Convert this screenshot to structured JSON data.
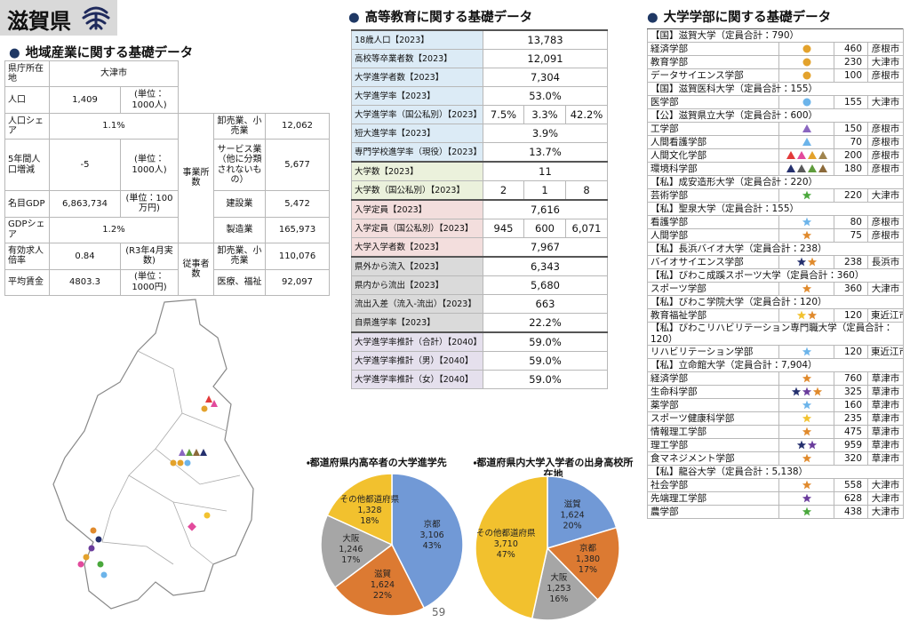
{
  "header": {
    "title": "滋賀県",
    "page_number": "59"
  },
  "industry": {
    "title": "地域産業に関する基礎データ",
    "rows": [
      {
        "label": "県庁所在地",
        "value": "大津市"
      },
      {
        "label": "人口",
        "value": "1,409",
        "unit": "(単位：1000人)"
      },
      {
        "label": "人口シェア",
        "value": "1.1%"
      },
      {
        "label": "5年間人口増減",
        "value": "-5",
        "unit": "(単位：1000人)"
      },
      {
        "label": "名目GDP",
        "value": "6,863,734",
        "unit": "(単位：100万円)"
      },
      {
        "label": "GDPシェア",
        "value": "1.2%"
      },
      {
        "label": "有効求人倍率",
        "value": "0.84",
        "unit": "(R3年4月実数)"
      },
      {
        "label": "平均賃金",
        "value": "4803.3",
        "unit": "(単位：1000円)"
      }
    ],
    "establishments": {
      "label": "事業所数",
      "items": [
        {
          "label": "卸売業、小売業",
          "value": "12,062"
        },
        {
          "label": "サービス業（他に分類されないもの）",
          "value": "5,677"
        },
        {
          "label": "建設業",
          "value": "5,472"
        },
        {
          "label": "製造業",
          "value": "165,973"
        }
      ]
    },
    "employees": {
      "label": "従事者数",
      "items": [
        {
          "label": "卸売業、小売業",
          "value": "110,076"
        },
        {
          "label": "医療、福祉",
          "value": "92,097"
        }
      ]
    }
  },
  "higher_education": {
    "title": "高等教育に関する基礎データ",
    "sections": [
      {
        "color": "#dcebf6",
        "rows": [
          {
            "label": "18歳人口【2023】",
            "values": [
              "13,783"
            ]
          },
          {
            "label": "高校等卒業者数【2023】",
            "values": [
              "12,091"
            ]
          },
          {
            "label": "大学進学者数【2023】",
            "values": [
              "7,304"
            ]
          },
          {
            "label": "大学進学率【2023】",
            "values": [
              "53.0%"
            ]
          },
          {
            "label": "大学進学率（国公私別）【2023】",
            "values": [
              "7.5%",
              "3.3%",
              "42.2%"
            ]
          },
          {
            "label": "短大進学率【2023】",
            "values": [
              "3.9%"
            ]
          },
          {
            "label": "専門学校進学率（現役）【2023】",
            "values": [
              "13.7%"
            ]
          }
        ]
      },
      {
        "color": "#ebf1dc",
        "rows": [
          {
            "label": "大学数【2023】",
            "values": [
              "11"
            ]
          },
          {
            "label": "大学数（国公私別）【2023】",
            "values": [
              "2",
              "1",
              "8"
            ]
          }
        ]
      },
      {
        "color": "#f3dedd",
        "rows": [
          {
            "label": "入学定員【2023】",
            "values": [
              "7,616"
            ]
          },
          {
            "label": "入学定員（国公私別）【2023】",
            "values": [
              "945",
              "600",
              "6,071"
            ]
          },
          {
            "label": "大学入学者数【2023】",
            "values": [
              "7,967"
            ]
          }
        ]
      },
      {
        "color": "#dadada",
        "rows": [
          {
            "label": "県外から流入【2023】",
            "values": [
              "6,343"
            ]
          },
          {
            "label": "県内から流出【2023】",
            "values": [
              "5,680"
            ]
          },
          {
            "label": "流出入差（流入-流出）【2023】",
            "values": [
              "663"
            ]
          },
          {
            "label": "自県進学率【2023】",
            "values": [
              "22.2%"
            ]
          }
        ]
      },
      {
        "color": "#e5e0ed",
        "rows": [
          {
            "label": "大学進学率推計（合計）【2040】",
            "values": [
              "59.0%"
            ]
          },
          {
            "label": "大学進学率推計（男）【2040】",
            "values": [
              "59.0%"
            ]
          },
          {
            "label": "大学進学率推計（女）【2040】",
            "values": [
              "59.0%"
            ]
          }
        ]
      }
    ]
  },
  "universities": {
    "title": "大学学部に関する基礎データ",
    "list": [
      {
        "header": "【国】滋賀大学（定員合計：790）",
        "faculties": [
          {
            "name": "経済学部",
            "marker": {
              "shape": "circle",
              "colors": [
                "#e3a22c"
              ]
            },
            "capacity": 460,
            "city": "彦根市"
          },
          {
            "name": "教育学部",
            "marker": {
              "shape": "circle",
              "colors": [
                "#e3a22c"
              ]
            },
            "capacity": 230,
            "city": "大津市"
          },
          {
            "name": "データサイエンス学部",
            "marker": {
              "shape": "circle",
              "colors": [
                "#e3a22c"
              ]
            },
            "capacity": 100,
            "city": "彦根市"
          }
        ]
      },
      {
        "header": "【国】滋賀医科大学（定員合計：155）",
        "faculties": [
          {
            "name": "医学部",
            "marker": {
              "shape": "circle",
              "colors": [
                "#6cb4ea"
              ]
            },
            "capacity": 155,
            "city": "大津市"
          }
        ]
      },
      {
        "header": "【公】滋賀県立大学（定員合計：600）",
        "faculties": [
          {
            "name": "工学部",
            "marker": {
              "shape": "triangle",
              "colors": [
                "#8a66c0"
              ]
            },
            "capacity": 150,
            "city": "彦根市"
          },
          {
            "name": "人間看護学部",
            "marker": {
              "shape": "triangle",
              "colors": [
                "#6cb4ea"
              ]
            },
            "capacity": 70,
            "city": "彦根市"
          },
          {
            "name": "人間文化学部",
            "marker": {
              "shape": "triangle",
              "colors": [
                "#e23a3a",
                "#e24a9c",
                "#e3a22c",
                "#a0844e"
              ]
            },
            "capacity": 200,
            "city": "彦根市"
          },
          {
            "name": "環境科学部",
            "marker": {
              "shape": "triangle",
              "colors": [
                "#25306e",
                "#5a5a5a",
                "#5f9c3c",
                "#8c6a3a"
              ]
            },
            "capacity": 180,
            "city": "彦根市"
          }
        ]
      },
      {
        "header": "【私】成安造形大学（定員合計：220）",
        "faculties": [
          {
            "name": "芸術学部",
            "marker": {
              "shape": "star",
              "colors": [
                "#4aa83c"
              ]
            },
            "capacity": 220,
            "city": "大津市"
          }
        ]
      },
      {
        "header": "【私】聖泉大学（定員合計：155）",
        "faculties": [
          {
            "name": "看護学部",
            "marker": {
              "shape": "star",
              "colors": [
                "#6cb4ea"
              ]
            },
            "capacity": 80,
            "city": "彦根市"
          },
          {
            "name": "人間学部",
            "marker": {
              "shape": "star",
              "colors": [
                "#e08a2c"
              ]
            },
            "capacity": 75,
            "city": "彦根市"
          }
        ]
      },
      {
        "header": "【私】長浜バイオ大学（定員合計：238）",
        "faculties": [
          {
            "name": "バイオサイエンス学部",
            "marker": {
              "shape": "star",
              "colors": [
                "#25306e",
                "#e08a2c"
              ]
            },
            "capacity": 238,
            "city": "長浜市"
          }
        ]
      },
      {
        "header": "【私】びわこ成蹊スポーツ大学（定員合計：360）",
        "faculties": [
          {
            "name": "スポーツ学部",
            "marker": {
              "shape": "star",
              "colors": [
                "#e08a2c"
              ]
            },
            "capacity": 360,
            "city": "大津市"
          }
        ]
      },
      {
        "header": "【私】びわこ学院大学（定員合計：120）",
        "faculties": [
          {
            "name": "教育福祉学部",
            "marker": {
              "shape": "star",
              "colors": [
                "#f2c230",
                "#e08a2c"
              ]
            },
            "capacity": 120,
            "city": "東近江市"
          }
        ]
      },
      {
        "header": "【私】びわこリハビリテーション専門職大学（定員合計：120）",
        "faculties": [
          {
            "name": "リハビリテーション学部",
            "marker": {
              "shape": "star",
              "colors": [
                "#6cb4ea"
              ]
            },
            "capacity": 120,
            "city": "東近江市"
          }
        ]
      },
      {
        "header": "【私】立命館大学（定員合計：7,904）",
        "faculties": [
          {
            "name": "経済学部",
            "marker": {
              "shape": "star",
              "colors": [
                "#e08a2c"
              ]
            },
            "capacity": 760,
            "city": "草津市"
          },
          {
            "name": "生命科学部",
            "marker": {
              "shape": "star",
              "colors": [
                "#25306e",
                "#6a3c9c",
                "#e08a2c"
              ]
            },
            "capacity": 325,
            "city": "草津市"
          },
          {
            "name": "薬学部",
            "marker": {
              "shape": "star",
              "colors": [
                "#6cb4ea"
              ]
            },
            "capacity": 160,
            "city": "草津市"
          },
          {
            "name": "スポーツ健康科学部",
            "marker": {
              "shape": "star",
              "colors": [
                "#f2c230"
              ]
            },
            "capacity": 235,
            "city": "草津市"
          },
          {
            "name": "情報理工学部",
            "marker": {
              "shape": "star",
              "colors": [
                "#e08a2c"
              ]
            },
            "capacity": 475,
            "city": "草津市"
          },
          {
            "name": "理工学部",
            "marker": {
              "shape": "star",
              "colors": [
                "#25306e",
                "#6a3c9c"
              ]
            },
            "capacity": 959,
            "city": "草津市"
          },
          {
            "name": "食マネジメント学部",
            "marker": {
              "shape": "star",
              "colors": [
                "#e08a2c"
              ]
            },
            "capacity": 320,
            "city": "草津市"
          }
        ]
      },
      {
        "header": "【私】龍谷大学（定員合計：5,138）",
        "faculties": [
          {
            "name": "社会学部",
            "marker": {
              "shape": "star",
              "colors": [
                "#e08a2c"
              ]
            },
            "capacity": 558,
            "city": "大津市"
          },
          {
            "name": "先端理工学部",
            "marker": {
              "shape": "star",
              "colors": [
                "#6a3c9c"
              ]
            },
            "capacity": 628,
            "city": "大津市"
          },
          {
            "name": "農学部",
            "marker": {
              "shape": "star",
              "colors": [
                "#4aa83c"
              ]
            },
            "capacity": 438,
            "city": "大津市"
          }
        ]
      }
    ]
  },
  "chart_data": [
    {
      "type": "pie",
      "title": "・都道府県内高卒者の大学進学先",
      "categories": [
        "京都",
        "滋賀",
        "大阪",
        "その他都道府県"
      ],
      "values": [
        3106,
        1624,
        1246,
        1328
      ],
      "value_labels": [
        "3,106",
        "1,624",
        "1,246",
        "1,328"
      ],
      "percents": [
        43,
        22,
        17,
        18
      ],
      "percent_labels": [
        "43%",
        "22%",
        "17%",
        "18%"
      ],
      "colors": [
        "#7199d6",
        "#dc7a32",
        "#a6a6a6",
        "#f2c12e"
      ]
    },
    {
      "type": "pie",
      "title": "・都道府県内大学入学者の出身高校所在地",
      "categories": [
        "滋賀",
        "京都",
        "大阪",
        "その他都道府県"
      ],
      "values": [
        1624,
        1380,
        1253,
        3710
      ],
      "value_labels": [
        "1,624",
        "1,380",
        "1,253",
        "3,710"
      ],
      "percents": [
        20,
        17,
        16,
        47
      ],
      "percent_labels": [
        "20%",
        "17%",
        "16%",
        "47%"
      ],
      "colors": [
        "#7199d6",
        "#dc7a32",
        "#a6a6a6",
        "#f2c12e"
      ]
    }
  ]
}
